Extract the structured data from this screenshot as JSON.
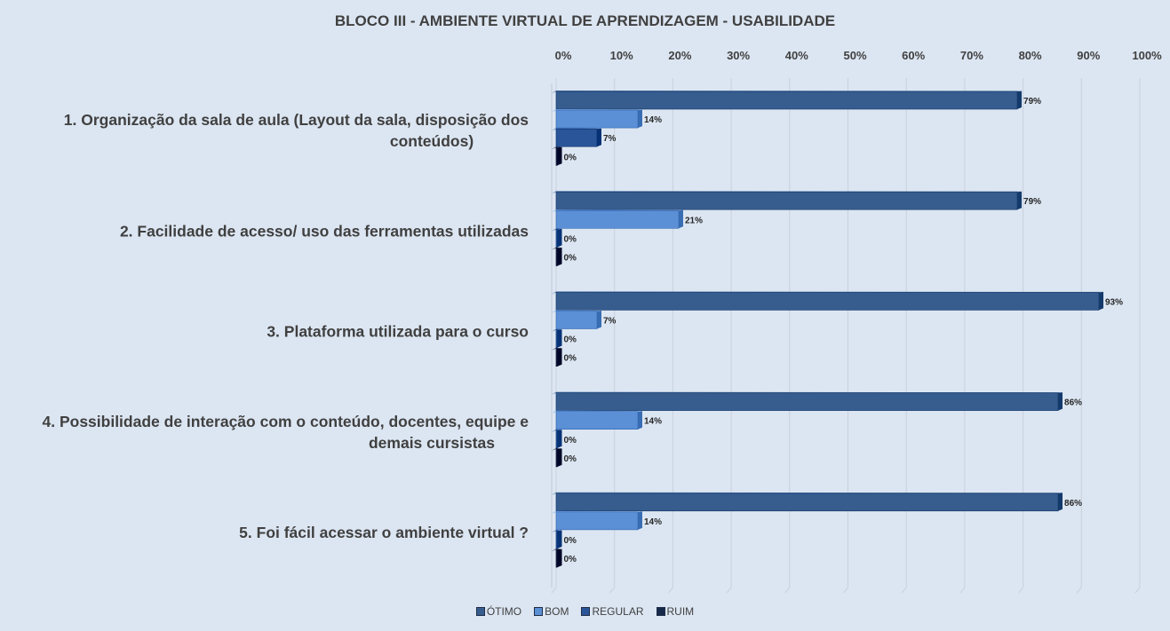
{
  "chart_data": {
    "type": "bar",
    "orientation": "horizontal",
    "title": "BLOCO III - AMBIENTE VIRTUAL DE APRENDIZAGEM - USABILIDADE",
    "categories": [
      [
        "1. Organização da sala de aula (Layout da sala, disposição dos",
        "conteúdos)"
      ],
      [
        "2. Facilidade de acesso/ uso das ferramentas utilizadas"
      ],
      [
        "3. Plataforma utilizada para o curso"
      ],
      [
        "4. Possibilidade de interação com o conteúdo, docentes, equipe e",
        "demais cursistas"
      ],
      [
        "5. Foi fácil acessar o ambiente virtual ?"
      ]
    ],
    "series": [
      {
        "name": "ÓTIMO",
        "color": "#375d8f",
        "values": [
          79,
          79,
          93,
          86,
          86
        ]
      },
      {
        "name": "BOM",
        "color": "#5b8fd6",
        "values": [
          14,
          21,
          7,
          14,
          14
        ]
      },
      {
        "name": "REGULAR",
        "color": "#2a5598",
        "values": [
          7,
          0,
          0,
          0,
          0
        ]
      },
      {
        "name": "RUIM",
        "color": "#17294a",
        "values": [
          0,
          0,
          0,
          0,
          0
        ]
      }
    ],
    "x_ticks": [
      "0%",
      "10%",
      "20%",
      "30%",
      "40%",
      "50%",
      "60%",
      "70%",
      "80%",
      "90%",
      "100%"
    ],
    "xlim": [
      0,
      100
    ],
    "value_suffix": "%",
    "grid": true,
    "legend_position": "bottom"
  }
}
